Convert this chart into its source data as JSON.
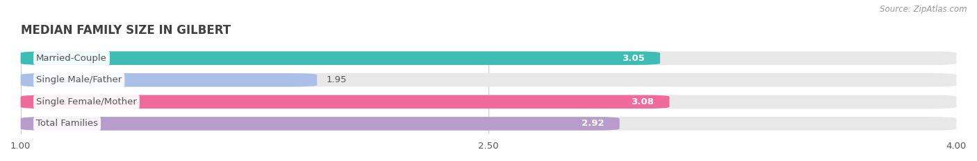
{
  "title": "MEDIAN FAMILY SIZE IN GILBERT",
  "source": "Source: ZipAtlas.com",
  "categories": [
    "Married-Couple",
    "Single Male/Father",
    "Single Female/Mother",
    "Total Families"
  ],
  "values": [
    3.05,
    1.95,
    3.08,
    2.92
  ],
  "bar_colors": [
    "#3dbdb5",
    "#aac0e8",
    "#f06a9b",
    "#b89dcc"
  ],
  "bar_bg_color": "#e8e8e8",
  "xmin": 1.0,
  "xmax": 4.0,
  "xticks": [
    1.0,
    2.5,
    4.0
  ],
  "xtick_labels": [
    "1.00",
    "2.50",
    "4.00"
  ],
  "label_color": "#555555",
  "value_color_inside": "#ffffff",
  "value_color_outside": "#555555",
  "title_color": "#404040",
  "source_color": "#999999",
  "background_color": "#ffffff",
  "bar_height": 0.62,
  "figsize": [
    14.06,
    2.33
  ],
  "dpi": 100
}
